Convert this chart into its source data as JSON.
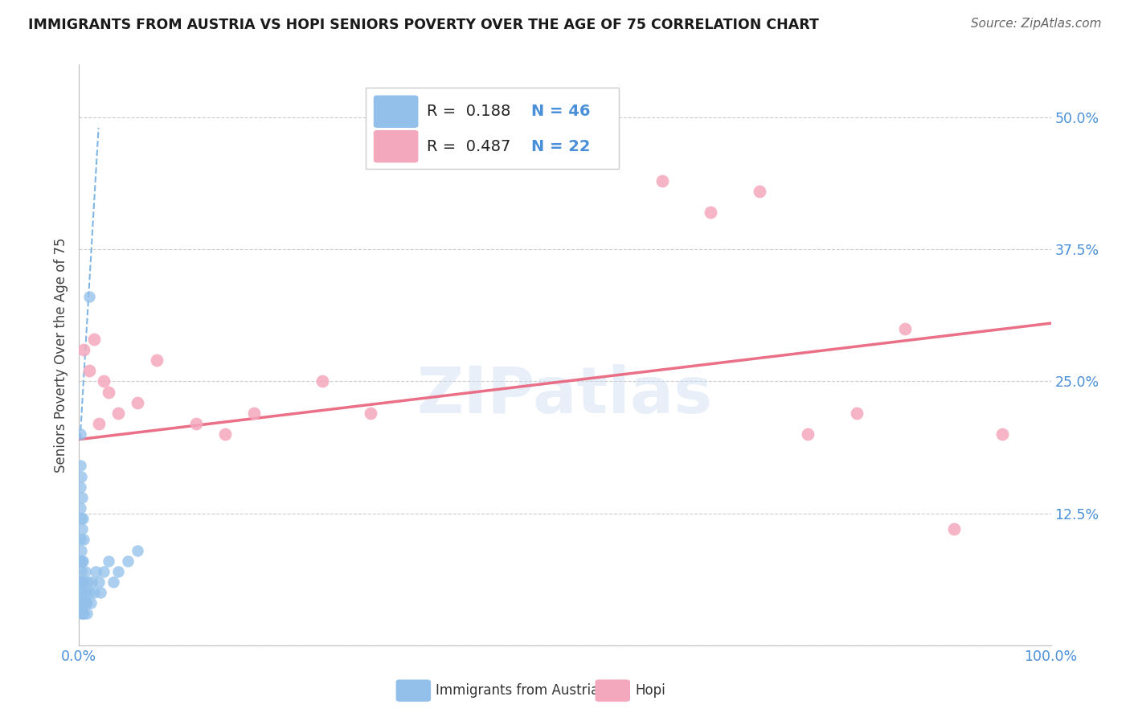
{
  "title": "IMMIGRANTS FROM AUSTRIA VS HOPI SENIORS POVERTY OVER THE AGE OF 75 CORRELATION CHART",
  "source": "Source: ZipAtlas.com",
  "ylabel": "Seniors Poverty Over the Age of 75",
  "xlim": [
    0.0,
    1.0
  ],
  "ylim": [
    0.0,
    0.55
  ],
  "xticks": [
    0.0,
    0.125,
    0.25,
    0.375,
    0.5,
    0.625,
    0.75,
    0.875,
    1.0
  ],
  "xticklabels": [
    "0.0%",
    "",
    "",
    "",
    "",
    "",
    "",
    "",
    "100.0%"
  ],
  "yticks": [
    0.0,
    0.125,
    0.25,
    0.375,
    0.5
  ],
  "yticklabels": [
    "",
    "12.5%",
    "25.0%",
    "37.5%",
    "50.0%"
  ],
  "blue_color": "#92c0ea",
  "pink_color": "#f4a8be",
  "blue_line_color": "#6aaade",
  "pink_line_color": "#e8607a",
  "legend_r1": "R =  0.188",
  "legend_n1": "N = 46",
  "legend_r2": "R =  0.487",
  "legend_n2": "N = 22",
  "watermark": "ZIPatlas",
  "austria_x": [
    0.001,
    0.001,
    0.001,
    0.001,
    0.001,
    0.001,
    0.001,
    0.001,
    0.002,
    0.002,
    0.002,
    0.002,
    0.002,
    0.002,
    0.003,
    0.003,
    0.003,
    0.003,
    0.003,
    0.004,
    0.004,
    0.004,
    0.004,
    0.005,
    0.005,
    0.005,
    0.006,
    0.006,
    0.007,
    0.008,
    0.009,
    0.01,
    0.012,
    0.013,
    0.015,
    0.017,
    0.02,
    0.022,
    0.025,
    0.03,
    0.035,
    0.04,
    0.05,
    0.06,
    0.01,
    0.008
  ],
  "austria_y": [
    0.04,
    0.06,
    0.08,
    0.1,
    0.13,
    0.15,
    0.17,
    0.2,
    0.03,
    0.05,
    0.07,
    0.09,
    0.12,
    0.16,
    0.04,
    0.06,
    0.08,
    0.11,
    0.14,
    0.03,
    0.05,
    0.08,
    0.12,
    0.03,
    0.06,
    0.1,
    0.04,
    0.07,
    0.05,
    0.04,
    0.06,
    0.05,
    0.04,
    0.06,
    0.05,
    0.07,
    0.06,
    0.05,
    0.07,
    0.08,
    0.06,
    0.07,
    0.08,
    0.09,
    0.33,
    0.03
  ],
  "hopi_x": [
    0.005,
    0.01,
    0.015,
    0.02,
    0.025,
    0.03,
    0.04,
    0.06,
    0.08,
    0.12,
    0.15,
    0.18,
    0.25,
    0.3,
    0.6,
    0.65,
    0.7,
    0.75,
    0.8,
    0.85,
    0.9,
    0.95
  ],
  "hopi_y": [
    0.28,
    0.26,
    0.29,
    0.21,
    0.25,
    0.24,
    0.22,
    0.23,
    0.27,
    0.21,
    0.2,
    0.22,
    0.25,
    0.22,
    0.44,
    0.41,
    0.43,
    0.2,
    0.22,
    0.3,
    0.11,
    0.2
  ],
  "blue_line_x": [
    0.001,
    0.02
  ],
  "blue_line_y": [
    0.195,
    0.49
  ],
  "pink_line_x": [
    0.0,
    1.0
  ],
  "pink_line_y": [
    0.195,
    0.305
  ]
}
